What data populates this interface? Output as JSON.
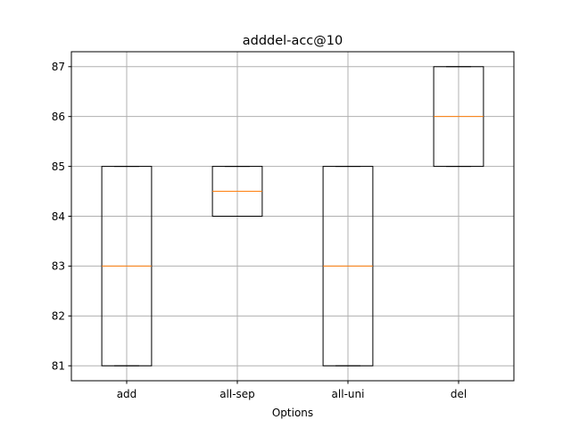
{
  "chart_data": {
    "type": "box",
    "title": "adddel-acc@10",
    "xlabel": "Options",
    "ylabel": "",
    "ylim": [
      80.7,
      87.3
    ],
    "yticks": [
      81,
      82,
      83,
      84,
      85,
      86,
      87
    ],
    "grid": true,
    "categories": [
      "add",
      "all-sep",
      "all-uni",
      "del"
    ],
    "boxes": [
      {
        "category": "add",
        "whislo": 81,
        "q1": 81,
        "median": 83,
        "q3": 85,
        "whishi": 85
      },
      {
        "category": "all-sep",
        "whislo": 84,
        "q1": 84,
        "median": 84.5,
        "q3": 85,
        "whishi": 85
      },
      {
        "category": "all-uni",
        "whislo": 81,
        "q1": 81,
        "median": 83,
        "q3": 85,
        "whishi": 85
      },
      {
        "category": "del",
        "whislo": 85,
        "q1": 85,
        "median": 86,
        "q3": 87,
        "whishi": 87
      }
    ],
    "colors": {
      "box": "#000000",
      "median": "#ff7f0e",
      "grid": "#b0b0b0"
    }
  }
}
